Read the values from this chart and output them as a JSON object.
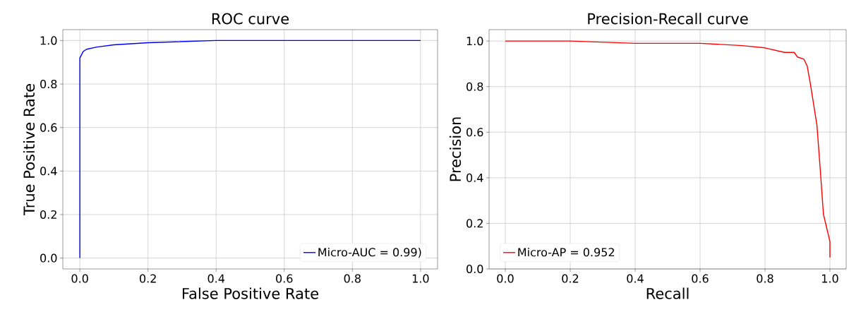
{
  "chart_data": [
    {
      "type": "line",
      "title": "ROC curve",
      "xlabel": "False Positive Rate",
      "ylabel": "True Positive Rate",
      "series": [
        {
          "name": "Micro-AUC = 0.99)",
          "color": "#0000ff",
          "x": [
            0,
            0.0,
            0.01,
            0.02,
            0.05,
            0.1,
            0.2,
            0.4,
            1.0
          ],
          "values": [
            0,
            0.92,
            0.95,
            0.96,
            0.97,
            0.98,
            0.99,
            1.0,
            1.0
          ]
        }
      ],
      "xlim": [
        -0.05,
        1.05
      ],
      "ylim": [
        -0.05,
        1.05
      ],
      "xticks": [
        {
          "value": 0,
          "label": "0.0"
        },
        {
          "value": 0.2,
          "label": "0.2"
        },
        {
          "value": 0.4,
          "label": "0.4"
        },
        {
          "value": 0.6,
          "label": "0.6"
        },
        {
          "value": 0.8,
          "label": "0.8"
        },
        {
          "value": 1,
          "label": "1.0"
        }
      ],
      "yticks": [
        {
          "value": 0,
          "label": "0.0"
        },
        {
          "value": 0.2,
          "label": "0.2"
        },
        {
          "value": 0.4,
          "label": "0.4"
        },
        {
          "value": 0.6,
          "label": "0.6"
        },
        {
          "value": 0.8,
          "label": "0.8"
        },
        {
          "value": 1,
          "label": "1.0"
        }
      ],
      "grid": true,
      "legend": "bottom right"
    },
    {
      "type": "line",
      "title": "Precision-Recall curve",
      "xlabel": "Recall",
      "ylabel": "Precision",
      "series": [
        {
          "name": "Micro-AP = 0.952",
          "color": "#ff0000",
          "x": [
            0,
            0.2,
            0.4,
            0.6,
            0.73,
            0.8,
            0.86,
            0.89,
            0.9,
            0.92,
            0.93,
            0.94,
            0.96,
            0.97,
            0.98,
            1.0,
            1.0
          ],
          "values": [
            1.0,
            1.0,
            0.99,
            0.99,
            0.98,
            0.97,
            0.95,
            0.95,
            0.93,
            0.92,
            0.89,
            0.81,
            0.63,
            0.44,
            0.24,
            0.12,
            0.05
          ]
        }
      ],
      "xlim": [
        -0.05,
        1.05
      ],
      "ylim": [
        0,
        1.05
      ],
      "xticks": [
        {
          "value": 0,
          "label": "0.0"
        },
        {
          "value": 0.2,
          "label": "0.2"
        },
        {
          "value": 0.4,
          "label": "0.4"
        },
        {
          "value": 0.6,
          "label": "0.6"
        },
        {
          "value": 0.8,
          "label": "0.8"
        },
        {
          "value": 1,
          "label": "1.0"
        }
      ],
      "yticks": [
        {
          "value": 0,
          "label": "0.0"
        },
        {
          "value": 0.2,
          "label": "0.2"
        },
        {
          "value": 0.4,
          "label": "0.4"
        },
        {
          "value": 0.6,
          "label": "0.6"
        },
        {
          "value": 0.8,
          "label": "0.8"
        },
        {
          "value": 1,
          "label": "1.0"
        }
      ],
      "grid": true,
      "legend": "bottom left"
    }
  ]
}
